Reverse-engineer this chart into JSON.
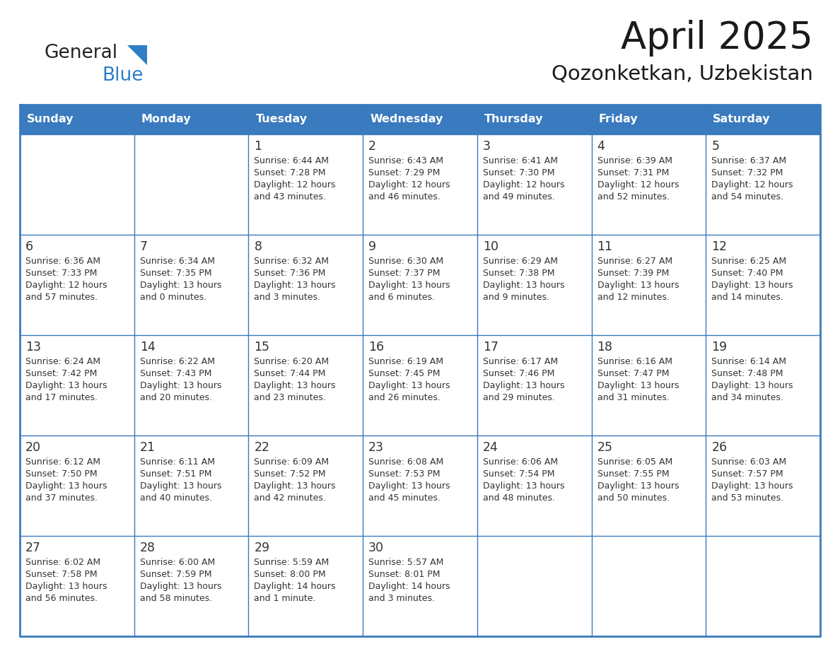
{
  "title": "April 2025",
  "subtitle": "Qozonketkan, Uzbekistan",
  "header_bg": "#3a7abf",
  "header_text": "#ffffff",
  "cell_bg": "#ffffff",
  "grid_line_color": "#3a7abf",
  "text_color": "#333333",
  "day_names": [
    "Sunday",
    "Monday",
    "Tuesday",
    "Wednesday",
    "Thursday",
    "Friday",
    "Saturday"
  ],
  "days": [
    {
      "day": 1,
      "col": 2,
      "row": 0,
      "sunrise": "6:44 AM",
      "sunset": "7:28 PM",
      "daylight_line1": "Daylight: 12 hours",
      "daylight_line2": "and 43 minutes."
    },
    {
      "day": 2,
      "col": 3,
      "row": 0,
      "sunrise": "6:43 AM",
      "sunset": "7:29 PM",
      "daylight_line1": "Daylight: 12 hours",
      "daylight_line2": "and 46 minutes."
    },
    {
      "day": 3,
      "col": 4,
      "row": 0,
      "sunrise": "6:41 AM",
      "sunset": "7:30 PM",
      "daylight_line1": "Daylight: 12 hours",
      "daylight_line2": "and 49 minutes."
    },
    {
      "day": 4,
      "col": 5,
      "row": 0,
      "sunrise": "6:39 AM",
      "sunset": "7:31 PM",
      "daylight_line1": "Daylight: 12 hours",
      "daylight_line2": "and 52 minutes."
    },
    {
      "day": 5,
      "col": 6,
      "row": 0,
      "sunrise": "6:37 AM",
      "sunset": "7:32 PM",
      "daylight_line1": "Daylight: 12 hours",
      "daylight_line2": "and 54 minutes."
    },
    {
      "day": 6,
      "col": 0,
      "row": 1,
      "sunrise": "6:36 AM",
      "sunset": "7:33 PM",
      "daylight_line1": "Daylight: 12 hours",
      "daylight_line2": "and 57 minutes."
    },
    {
      "day": 7,
      "col": 1,
      "row": 1,
      "sunrise": "6:34 AM",
      "sunset": "7:35 PM",
      "daylight_line1": "Daylight: 13 hours",
      "daylight_line2": "and 0 minutes."
    },
    {
      "day": 8,
      "col": 2,
      "row": 1,
      "sunrise": "6:32 AM",
      "sunset": "7:36 PM",
      "daylight_line1": "Daylight: 13 hours",
      "daylight_line2": "and 3 minutes."
    },
    {
      "day": 9,
      "col": 3,
      "row": 1,
      "sunrise": "6:30 AM",
      "sunset": "7:37 PM",
      "daylight_line1": "Daylight: 13 hours",
      "daylight_line2": "and 6 minutes."
    },
    {
      "day": 10,
      "col": 4,
      "row": 1,
      "sunrise": "6:29 AM",
      "sunset": "7:38 PM",
      "daylight_line1": "Daylight: 13 hours",
      "daylight_line2": "and 9 minutes."
    },
    {
      "day": 11,
      "col": 5,
      "row": 1,
      "sunrise": "6:27 AM",
      "sunset": "7:39 PM",
      "daylight_line1": "Daylight: 13 hours",
      "daylight_line2": "and 12 minutes."
    },
    {
      "day": 12,
      "col": 6,
      "row": 1,
      "sunrise": "6:25 AM",
      "sunset": "7:40 PM",
      "daylight_line1": "Daylight: 13 hours",
      "daylight_line2": "and 14 minutes."
    },
    {
      "day": 13,
      "col": 0,
      "row": 2,
      "sunrise": "6:24 AM",
      "sunset": "7:42 PM",
      "daylight_line1": "Daylight: 13 hours",
      "daylight_line2": "and 17 minutes."
    },
    {
      "day": 14,
      "col": 1,
      "row": 2,
      "sunrise": "6:22 AM",
      "sunset": "7:43 PM",
      "daylight_line1": "Daylight: 13 hours",
      "daylight_line2": "and 20 minutes."
    },
    {
      "day": 15,
      "col": 2,
      "row": 2,
      "sunrise": "6:20 AM",
      "sunset": "7:44 PM",
      "daylight_line1": "Daylight: 13 hours",
      "daylight_line2": "and 23 minutes."
    },
    {
      "day": 16,
      "col": 3,
      "row": 2,
      "sunrise": "6:19 AM",
      "sunset": "7:45 PM",
      "daylight_line1": "Daylight: 13 hours",
      "daylight_line2": "and 26 minutes."
    },
    {
      "day": 17,
      "col": 4,
      "row": 2,
      "sunrise": "6:17 AM",
      "sunset": "7:46 PM",
      "daylight_line1": "Daylight: 13 hours",
      "daylight_line2": "and 29 minutes."
    },
    {
      "day": 18,
      "col": 5,
      "row": 2,
      "sunrise": "6:16 AM",
      "sunset": "7:47 PM",
      "daylight_line1": "Daylight: 13 hours",
      "daylight_line2": "and 31 minutes."
    },
    {
      "day": 19,
      "col": 6,
      "row": 2,
      "sunrise": "6:14 AM",
      "sunset": "7:48 PM",
      "daylight_line1": "Daylight: 13 hours",
      "daylight_line2": "and 34 minutes."
    },
    {
      "day": 20,
      "col": 0,
      "row": 3,
      "sunrise": "6:12 AM",
      "sunset": "7:50 PM",
      "daylight_line1": "Daylight: 13 hours",
      "daylight_line2": "and 37 minutes."
    },
    {
      "day": 21,
      "col": 1,
      "row": 3,
      "sunrise": "6:11 AM",
      "sunset": "7:51 PM",
      "daylight_line1": "Daylight: 13 hours",
      "daylight_line2": "and 40 minutes."
    },
    {
      "day": 22,
      "col": 2,
      "row": 3,
      "sunrise": "6:09 AM",
      "sunset": "7:52 PM",
      "daylight_line1": "Daylight: 13 hours",
      "daylight_line2": "and 42 minutes."
    },
    {
      "day": 23,
      "col": 3,
      "row": 3,
      "sunrise": "6:08 AM",
      "sunset": "7:53 PM",
      "daylight_line1": "Daylight: 13 hours",
      "daylight_line2": "and 45 minutes."
    },
    {
      "day": 24,
      "col": 4,
      "row": 3,
      "sunrise": "6:06 AM",
      "sunset": "7:54 PM",
      "daylight_line1": "Daylight: 13 hours",
      "daylight_line2": "and 48 minutes."
    },
    {
      "day": 25,
      "col": 5,
      "row": 3,
      "sunrise": "6:05 AM",
      "sunset": "7:55 PM",
      "daylight_line1": "Daylight: 13 hours",
      "daylight_line2": "and 50 minutes."
    },
    {
      "day": 26,
      "col": 6,
      "row": 3,
      "sunrise": "6:03 AM",
      "sunset": "7:57 PM",
      "daylight_line1": "Daylight: 13 hours",
      "daylight_line2": "and 53 minutes."
    },
    {
      "day": 27,
      "col": 0,
      "row": 4,
      "sunrise": "6:02 AM",
      "sunset": "7:58 PM",
      "daylight_line1": "Daylight: 13 hours",
      "daylight_line2": "and 56 minutes."
    },
    {
      "day": 28,
      "col": 1,
      "row": 4,
      "sunrise": "6:00 AM",
      "sunset": "7:59 PM",
      "daylight_line1": "Daylight: 13 hours",
      "daylight_line2": "and 58 minutes."
    },
    {
      "day": 29,
      "col": 2,
      "row": 4,
      "sunrise": "5:59 AM",
      "sunset": "8:00 PM",
      "daylight_line1": "Daylight: 14 hours",
      "daylight_line2": "and 1 minute."
    },
    {
      "day": 30,
      "col": 3,
      "row": 4,
      "sunrise": "5:57 AM",
      "sunset": "8:01 PM",
      "daylight_line1": "Daylight: 14 hours",
      "daylight_line2": "and 3 minutes."
    }
  ],
  "logo_general_color": "#222222",
  "logo_blue_color": "#2d7ec4",
  "logo_triangle_color": "#2d7ec4"
}
